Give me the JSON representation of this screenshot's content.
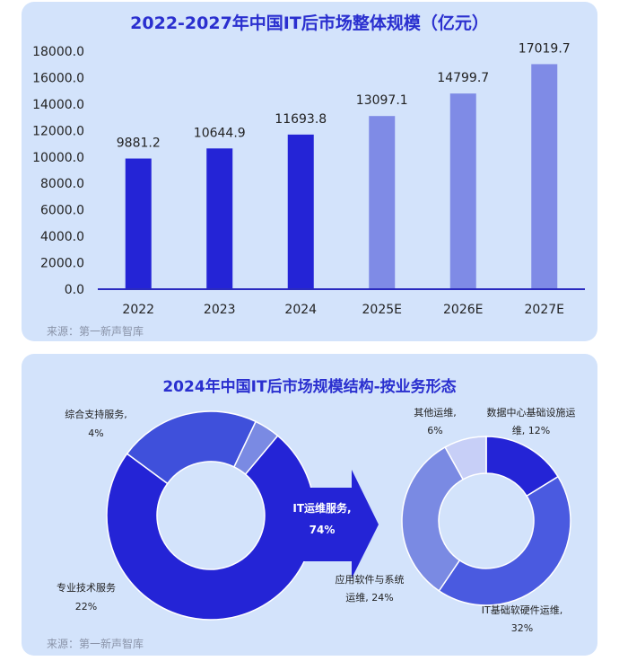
{
  "chart_data": [
    {
      "type": "bar",
      "title": "2022-2027年中国IT后市场整体规模（亿元）",
      "categories": [
        "2022",
        "2023",
        "2024",
        "2025E",
        "2026E",
        "2027E"
      ],
      "values": [
        9881.2,
        10644.9,
        11693.8,
        13097.1,
        14799.7,
        17019.7
      ],
      "value_labels": [
        "9881.2",
        "10644.9",
        "11693.8",
        "13097.1",
        "14799.7",
        "17019.7"
      ],
      "yticks": [
        "18000.0",
        "16000.0",
        "14000.0",
        "12000.0",
        "10000.0",
        "8000.0",
        "6000.0",
        "4000.0",
        "2000.0",
        "0.0"
      ],
      "ylim": [
        0,
        18000
      ],
      "colors": {
        "actual": "#2424d6",
        "forecast": "#7f8be6",
        "axis": "#2b2bbf"
      },
      "source": "来源：第一新声智库"
    },
    {
      "type": "pie",
      "title": "2024年中国IT后市场规模结构-按业务形态",
      "left_donut": {
        "slices": [
          {
            "label": "IT运维服务,",
            "pct_label": "74%",
            "value": 74,
            "color": "#2424d6"
          },
          {
            "label": "专业技术服务",
            "pct_label": "22%",
            "value": 22,
            "color": "#3f50db"
          },
          {
            "label": "综合支持服务,",
            "pct_label": "4%",
            "value": 4,
            "color": "#7a8ae3"
          }
        ]
      },
      "right_donut": {
        "slices": [
          {
            "label_lines": [
              "数据中心基础设施运",
              "维, 12%"
            ],
            "value": 12,
            "color": "#2424d6"
          },
          {
            "label_lines": [
              "IT基础软硬件运维,",
              "32%"
            ],
            "value": 32,
            "color": "#4a5ae0"
          },
          {
            "label_lines": [
              "应用软件与系统",
              "运维, 24%"
            ],
            "value": 24,
            "color": "#7a8ae3"
          },
          {
            "label_lines": [
              "其他运维,",
              "6%"
            ],
            "value": 6,
            "color": "#c7cff7"
          }
        ]
      },
      "colors": {
        "arrow": "#2424d6"
      },
      "source": "来源：第一新声智库"
    }
  ]
}
